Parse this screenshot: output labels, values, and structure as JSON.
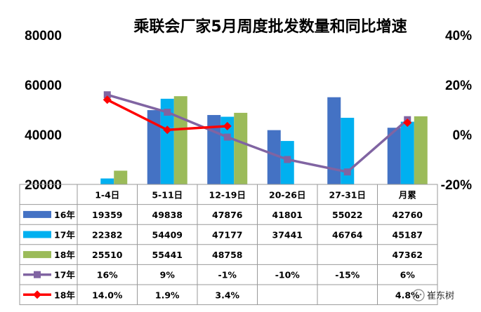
{
  "chart_data": {
    "type": "bar",
    "title": "乘联会厂家5月周度批发数量和同比增速",
    "categories": [
      "1-4日",
      "5-11日",
      "12-19日",
      "20-26日",
      "27-31日",
      "月累"
    ],
    "y_left": {
      "ticks": [
        "80000",
        "60000",
        "40000",
        "20000"
      ],
      "range": [
        20000,
        80000
      ]
    },
    "y_right": {
      "ticks": [
        "40%",
        "20%",
        "0%",
        "-20%"
      ],
      "range": [
        -20,
        40
      ]
    },
    "series": [
      {
        "name": "16年",
        "kind": "bar",
        "color": "#4472C4",
        "values": [
          19359,
          49838,
          47876,
          41801,
          55022,
          42760
        ],
        "labels": [
          "19359",
          "49838",
          "47876",
          "41801",
          "55022",
          "42760"
        ]
      },
      {
        "name": "17年",
        "kind": "bar",
        "color": "#00B0F0",
        "values": [
          22382,
          54409,
          47177,
          37441,
          46764,
          45187
        ],
        "labels": [
          "22382",
          "54409",
          "47177",
          "37441",
          "46764",
          "45187"
        ]
      },
      {
        "name": "18年",
        "kind": "bar",
        "color": "#9BBB59",
        "values": [
          25510,
          55441,
          48758,
          null,
          null,
          47362
        ],
        "labels": [
          "25510",
          "55441",
          "48758",
          "",
          "",
          "47362"
        ]
      },
      {
        "name": "17年",
        "kind": "line",
        "axis": "right",
        "color": "#8064A2",
        "marker": "square",
        "values": [
          16,
          9,
          -1,
          -10,
          -15,
          6
        ],
        "labels": [
          "16%",
          "9%",
          "-1%",
          "-10%",
          "-15%",
          "6%"
        ]
      },
      {
        "name": "18年",
        "kind": "line",
        "axis": "right",
        "color": "#FF0000",
        "marker": "diamond",
        "values": [
          14.0,
          1.9,
          3.4,
          null,
          null,
          4.8
        ],
        "labels": [
          "14.0%",
          "1.9%",
          "3.4%",
          "",
          "",
          "4.8%"
        ]
      }
    ],
    "grid": false,
    "legend": "data-table"
  },
  "watermark": "崔东树"
}
